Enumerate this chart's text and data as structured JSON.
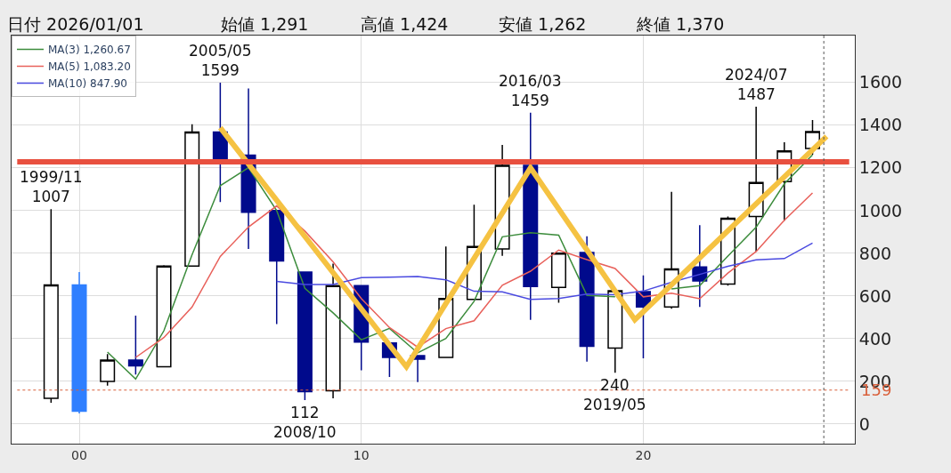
{
  "chart_data": {
    "type": "candlestick",
    "annotations": [
      "日付 2026/01/01",
      "始値 1,291",
      "高値 1,424",
      "安値 1,262",
      "終値 1,370",
      {
        "text": "1999/11\n1007",
        "x": -1,
        "y": 1007
      },
      {
        "text": "2005/05\n1599",
        "x": 5,
        "y": 1599
      },
      {
        "text": "112\n2008/10",
        "x": 8,
        "y": 112
      },
      {
        "text": "2016/03\n1459",
        "x": 16,
        "y": 1459
      },
      {
        "text": "240\n2019/05",
        "x": 19,
        "y": 240
      },
      {
        "text": "2024/07\n1487",
        "x": 24,
        "y": 1487
      }
    ],
    "x": [
      -1,
      0,
      1,
      2,
      3,
      4,
      5,
      6,
      7,
      8,
      9,
      10,
      11,
      12,
      13,
      14,
      15,
      16,
      17,
      18,
      19,
      20,
      21,
      22,
      23,
      24,
      25,
      26
    ],
    "ohlc": [
      [
        120,
        1007,
        100,
        652
      ],
      [
        652,
        712,
        50,
        60
      ],
      [
        200,
        328,
        180,
        300
      ],
      [
        300,
        508,
        232,
        272
      ],
      [
        268,
        744,
        268,
        740
      ],
      [
        740,
        1404,
        740,
        1368
      ],
      [
        1368,
        1599,
        1040,
        1244
      ],
      [
        1260,
        1572,
        820,
        992
      ],
      [
        1000,
        1000,
        468,
        764
      ],
      [
        712,
        712,
        112,
        152
      ],
      [
        156,
        752,
        120,
        648
      ],
      [
        648,
        648,
        252,
        384
      ],
      [
        380,
        380,
        220,
        312
      ],
      [
        320,
        320,
        196,
        304
      ],
      [
        312,
        832,
        312,
        588
      ],
      [
        584,
        1028,
        584,
        832
      ],
      [
        820,
        1308,
        788,
        1212
      ],
      [
        1212,
        1459,
        488,
        644
      ],
      [
        640,
        800,
        568,
        800
      ],
      [
        804,
        880,
        292,
        364
      ],
      [
        356,
        624,
        240,
        624
      ],
      [
        620,
        696,
        308,
        548
      ],
      [
        548,
        1088,
        540,
        727
      ],
      [
        736,
        932,
        548,
        670
      ],
      [
        656,
        972,
        648,
        964
      ],
      [
        972,
        1487,
        808,
        1132
      ],
      [
        1136,
        1320,
        952,
        1280
      ],
      [
        1291,
        1424,
        1262,
        1370
      ]
    ],
    "colors": [
      "#ffffff",
      "#2f7fff",
      "#ffffff",
      "#000a8c",
      "#ffffff",
      "#ffffff",
      "#000a8c",
      "#000a8c",
      "#000a8c",
      "#000a8c",
      "#ffffff",
      "#000a8c",
      "#000a8c",
      "#000a8c",
      "#ffffff",
      "#ffffff",
      "#ffffff",
      "#000a8c",
      "#ffffff",
      "#000a8c",
      "#ffffff",
      "#000a8c",
      "#ffffff",
      "#000a8c",
      "#ffffff",
      "#ffffff",
      "#ffffff",
      "#ffffff"
    ],
    "series": [
      {
        "name": "MA(3) 1,260.67",
        "color": "#3c8c3c",
        "type": "line",
        "x": [
          1,
          2,
          3,
          4,
          5,
          6,
          7,
          8,
          9,
          10,
          11,
          12,
          13,
          14,
          15,
          16,
          17,
          18,
          19,
          20,
          21,
          22,
          23,
          24,
          25,
          26
        ],
        "values": [
          337,
          211,
          437,
          793,
          1117,
          1201,
          1000,
          636,
          521,
          395,
          448,
          333,
          401,
          575,
          877,
          896,
          885,
          603,
          596,
          null,
          633,
          648,
          787,
          922,
          1125,
          1261
        ]
      },
      {
        "name": "MA(5) 1,083.20",
        "color": "#e8605a",
        "type": "line",
        "x": [
          2,
          3,
          4,
          5,
          6,
          7,
          8,
          9,
          10,
          11,
          12,
          13,
          14,
          15,
          16,
          17,
          18,
          19,
          20,
          21,
          22,
          23,
          24,
          25,
          26
        ],
        "values": [
          312,
          405,
          548,
          785,
          923,
          1022,
          904,
          760,
          588,
          452,
          360,
          447,
          484,
          650,
          716,
          815,
          770,
          729,
          596,
          613,
          587,
          707,
          808,
          955,
          1083
        ]
      },
      {
        "name": "MA(10) 847.90",
        "color": "#4a4ae0",
        "type": "line",
        "x": [
          7,
          8,
          9,
          10,
          11,
          12,
          13,
          14,
          15,
          16,
          17,
          18,
          19,
          20,
          21,
          22,
          23,
          24,
          25,
          26
        ],
        "values": [
          668,
          654,
          654,
          686,
          688,
          691,
          676,
          622,
          619,
          584,
          588,
          609,
          606,
          623,
          664,
          701,
          739,
          769,
          775,
          848
        ]
      },
      {
        "color": "#f5c242",
        "type": "line",
        "x": [
          5,
          11.6,
          16,
          19.7,
          26.5
        ],
        "values": [
          1388,
          268,
          1200,
          488,
          1348
        ]
      }
    ],
    "ref_lines": [
      {
        "axis": "y",
        "value": 1228,
        "color": "#e8503f",
        "line_style": "solid"
      },
      {
        "axis": "y",
        "value": 159,
        "label": "159",
        "color": "#d9603b",
        "line_style": "dotted"
      },
      {
        "axis": "x",
        "value": 26.4,
        "color": "#555555",
        "line_style": "dotted"
      }
    ],
    "xlim": [
      -2.4,
      27.5
    ],
    "xticks": [
      {
        "value": 0,
        "label": "00"
      },
      {
        "value": 10,
        "label": "10"
      },
      {
        "value": 20,
        "label": "20"
      }
    ],
    "ylim": [
      -92,
      1820
    ],
    "yticks": [
      0,
      200,
      400,
      600,
      800,
      1000,
      1200,
      1400,
      1600
    ],
    "grid": true,
    "legend": "top left"
  }
}
